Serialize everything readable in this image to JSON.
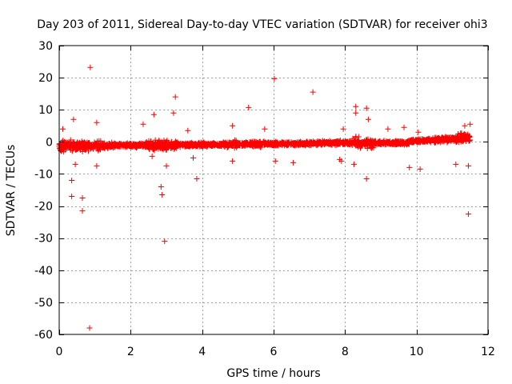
{
  "chart_data": {
    "type": "scatter",
    "title": "Day 203 of 2011, Sidereal Day-to-day VTEC variation (SDTVAR) for receiver ohi3",
    "xlabel": "GPS time / hours",
    "ylabel": "SDTVAR / TECUs",
    "xlim": [
      0,
      12
    ],
    "ylim": [
      -60,
      30
    ],
    "x_ticks": [
      "0",
      "2",
      "4",
      "6",
      "8",
      "10",
      "12"
    ],
    "y_ticks": [
      "30",
      "20",
      "10",
      "0",
      "-10",
      "-20",
      "-30",
      "-40",
      "-50",
      "-60"
    ],
    "grid": true,
    "marker": "+",
    "color": "#ff0000",
    "series": [
      {
        "name": "SDTVAR",
        "notes": "dense band of points near 0 from x=0 to x=11.5 with spread roughly -3 to +3; outliers listed below",
        "points": [
          [
            0.87,
            23.2
          ],
          [
            0.85,
            -58.0
          ],
          [
            2.95,
            -31.0
          ],
          [
            6.02,
            19.7
          ],
          [
            7.1,
            15.5
          ],
          [
            5.3,
            10.7
          ],
          [
            3.25,
            14.0
          ],
          [
            0.35,
            -17.0
          ],
          [
            0.65,
            -17.5
          ],
          [
            0.65,
            -21.5
          ],
          [
            0.35,
            -12.0
          ],
          [
            2.85,
            -14.0
          ],
          [
            2.88,
            -16.5
          ],
          [
            3.85,
            -11.5
          ],
          [
            11.45,
            -22.5
          ],
          [
            10.1,
            -8.5
          ],
          [
            0.4,
            7.0
          ],
          [
            1.05,
            6.0
          ],
          [
            2.65,
            8.5
          ],
          [
            8.3,
            11.0
          ],
          [
            8.6,
            10.5
          ],
          [
            8.3,
            9.0
          ],
          [
            8.6,
            -11.5
          ],
          [
            8.25,
            -7.0
          ],
          [
            4.85,
            -6.0
          ],
          [
            6.55,
            -6.5
          ],
          [
            6.05,
            -6.0
          ],
          [
            9.8,
            -8.0
          ],
          [
            11.45,
            -7.5
          ],
          [
            11.1,
            -7.0
          ],
          [
            1.05,
            -7.5
          ],
          [
            0.45,
            -7.0
          ],
          [
            3.0,
            -7.5
          ],
          [
            2.6,
            -4.5
          ],
          [
            3.75,
            -5.0
          ],
          [
            7.85,
            -5.5
          ],
          [
            7.9,
            -6.0
          ],
          [
            9.2,
            4.0
          ],
          [
            9.65,
            4.5
          ],
          [
            10.05,
            3.0
          ],
          [
            4.85,
            5.0
          ],
          [
            5.75,
            4.0
          ],
          [
            7.95,
            4.0
          ],
          [
            3.6,
            3.5
          ],
          [
            0.1,
            4.0
          ],
          [
            2.35,
            5.5
          ],
          [
            8.65,
            7.0
          ],
          [
            11.35,
            5.0
          ],
          [
            11.5,
            5.5
          ],
          [
            3.2,
            9.0
          ]
        ]
      }
    ]
  }
}
